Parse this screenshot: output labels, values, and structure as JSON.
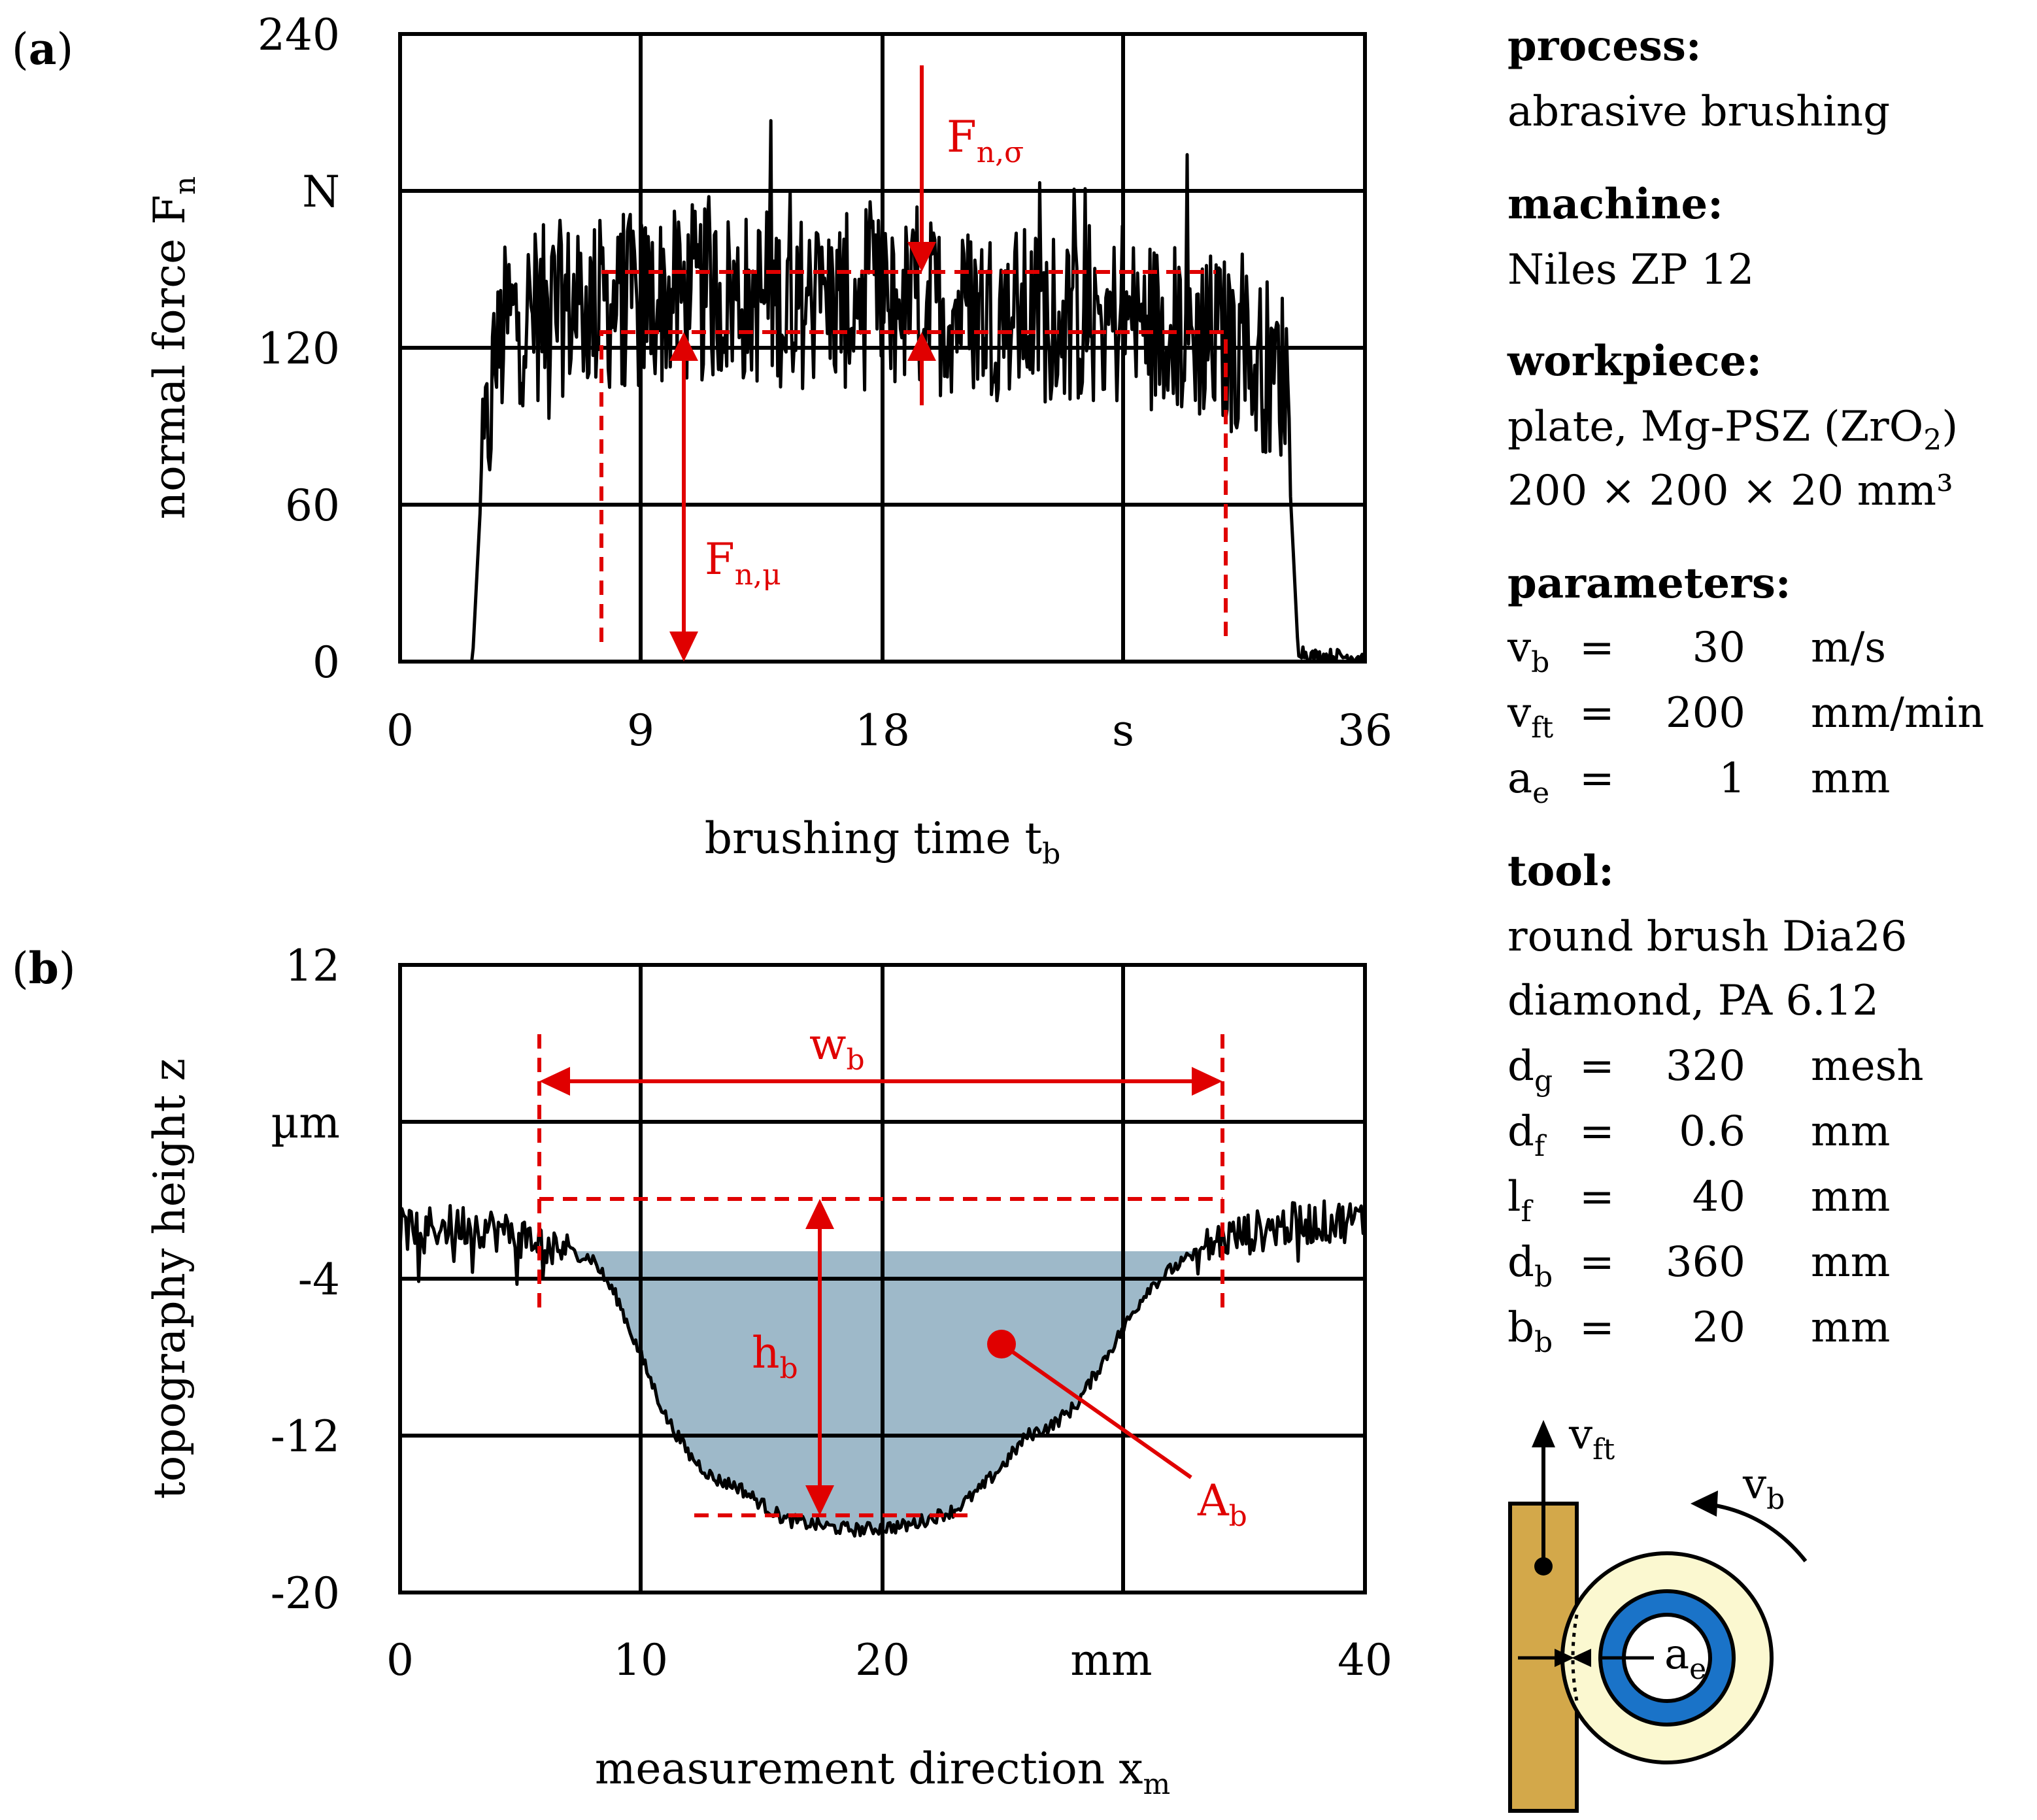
{
  "colors": {
    "accent": "#e00000",
    "fill_area": "#9eb9c9",
    "brush_outer": "#fbf8d0",
    "brush_inner": "#1a73c8",
    "workpiece": "#d3a84a"
  },
  "chart_data": [
    {
      "panel": "(a)",
      "type": "line",
      "xlabel": "brushing time t",
      "xlabel_sub": "b",
      "ylabel": "normal force F",
      "ylabel_sub": "n",
      "x_unit": "s",
      "y_unit": "N",
      "xlim": [
        0,
        36
      ],
      "ylim": [
        0,
        240
      ],
      "x_ticks": [
        "0",
        "9",
        "18",
        "",
        "36"
      ],
      "y_ticks": [
        "0",
        "60",
        "120",
        "",
        "240"
      ],
      "grid": true,
      "series": [
        {
          "name": "normal force",
          "values_description_x": [
            0,
            2.7,
            3.0,
            3.5,
            4.0,
            6,
            9,
            12,
            15,
            18,
            21,
            24,
            27,
            30,
            33.0,
            33.5,
            34,
            36
          ],
          "values_description_y": [
            0,
            0,
            60,
            110,
            130,
            135,
            138,
            140,
            138,
            137,
            135,
            132,
            130,
            125,
            110,
            5,
            2,
            2
          ]
        }
      ],
      "mean_level": 126,
      "std_level": 149,
      "eval_window": [
        7.5,
        31.0
      ],
      "annotations": [
        {
          "label": "F",
          "sub": "n,σ"
        },
        {
          "label": "F",
          "sub": "n,μ"
        }
      ]
    },
    {
      "panel": "(b)",
      "type": "line",
      "xlabel": "measurement direction x",
      "xlabel_sub": "m",
      "ylabel": "topography height z",
      "x_unit": "mm",
      "y_unit": "µm",
      "xlim": [
        0,
        40
      ],
      "ylim": [
        -20,
        12
      ],
      "x_ticks": [
        "0",
        "10",
        "20",
        "",
        "40"
      ],
      "y_ticks": [
        "-20",
        "-12",
        "-4",
        "",
        "12"
      ],
      "grid": true,
      "series": [
        {
          "name": "profile",
          "x": [
            0,
            3,
            6,
            8,
            9,
            10,
            11,
            12,
            13,
            14,
            15,
            16,
            17,
            18,
            19,
            20,
            21,
            22,
            23,
            24,
            25,
            26,
            27,
            28,
            29,
            30,
            31,
            32,
            34,
            37,
            40
          ],
          "y": [
            -1.5,
            -1.2,
            -2.2,
            -3.0,
            -5.0,
            -8.0,
            -11.0,
            -13.0,
            -14.2,
            -14.6,
            -15.5,
            -16.3,
            -16.5,
            -16.7,
            -16.8,
            -16.7,
            -16.6,
            -16.2,
            -15.8,
            -14.8,
            -13.5,
            -12.0,
            -11.5,
            -10.5,
            -8.5,
            -6.5,
            -4.5,
            -3.5,
            -2.0,
            -1.2,
            -1.0
          ]
        }
      ],
      "reference_top": -2.6,
      "reference_bottom": -17.3,
      "width_markers": [
        6.0,
        34.3
      ],
      "annotations": [
        {
          "label": "w",
          "sub": "b"
        },
        {
          "label": "h",
          "sub": "b"
        },
        {
          "label": "A",
          "sub": "b"
        }
      ]
    }
  ],
  "sidebar": {
    "process_heading": "process:",
    "process_value": "abrasive brushing",
    "machine_heading": "machine:",
    "machine_value": "Niles ZP 12",
    "workpiece_heading": "workpiece:",
    "workpiece_line1_a": "plate, Mg-PSZ (ZrO",
    "workpiece_line1_sub": "2",
    "workpiece_line1_b": ")",
    "workpiece_line2": "200 × 200 × 20 mm³",
    "parameters_heading": "parameters:",
    "parameters": [
      {
        "sym": "v",
        "sub": "b",
        "eq": "=",
        "value": "30",
        "unit": "m/s"
      },
      {
        "sym": "v",
        "sub": "ft",
        "eq": "=",
        "value": "200",
        "unit": "mm/min"
      },
      {
        "sym": "a",
        "sub": "e",
        "eq": "=",
        "value": "1",
        "unit": "mm"
      }
    ],
    "tool_heading": "tool:",
    "tool_line1": "round brush Dia26",
    "tool_line2": "diamond, PA 6.12",
    "tool_params": [
      {
        "sym": "d",
        "sub": "g",
        "eq": "=",
        "value": "320",
        "unit": "mesh"
      },
      {
        "sym": "d",
        "sub": "f",
        "eq": "=",
        "value": "0.6",
        "unit": "mm"
      },
      {
        "sym": "l",
        "sub": "f",
        "eq": "=",
        "value": "40",
        "unit": "mm"
      },
      {
        "sym": "d",
        "sub": "b",
        "eq": "=",
        "value": "360",
        "unit": "mm"
      },
      {
        "sym": "b",
        "sub": "b",
        "eq": "=",
        "value": "20",
        "unit": "mm"
      }
    ]
  },
  "schematic": {
    "vft": {
      "sym": "v",
      "sub": "ft"
    },
    "vb": {
      "sym": "v",
      "sub": "b"
    },
    "ae": {
      "sym": "a",
      "sub": "e"
    }
  }
}
